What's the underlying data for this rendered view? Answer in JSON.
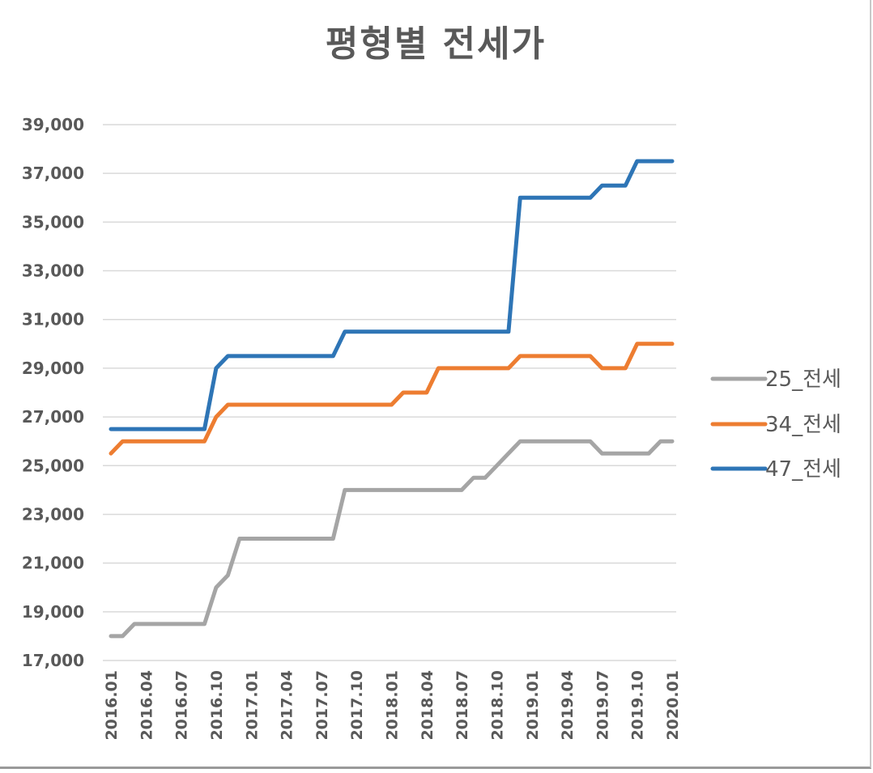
{
  "chart_data": {
    "type": "line",
    "title": "평형별 전세가",
    "xlabel": "",
    "ylabel": "",
    "ylim": [
      17000,
      39000
    ],
    "yticks": [
      17000,
      19000,
      21000,
      23000,
      25000,
      27000,
      29000,
      31000,
      33000,
      35000,
      37000,
      39000
    ],
    "ytick_labels": [
      "17,000",
      "19,000",
      "21,000",
      "23,000",
      "25,000",
      "27,000",
      "29,000",
      "31,000",
      "33,000",
      "35,000",
      "37,000",
      "39,000"
    ],
    "grid": true,
    "legend_position": "right",
    "xtick_labels": [
      "2016.01",
      "2016.04",
      "2016.07",
      "2016.10",
      "2017.01",
      "2017.04",
      "2017.07",
      "2017.10",
      "2018.01",
      "2018.04",
      "2018.07",
      "2018.10",
      "2019.01",
      "2019.04",
      "2019.07",
      "2019.10",
      "2020.01"
    ],
    "categories": [
      "2016.01",
      "2016.02",
      "2016.03",
      "2016.04",
      "2016.05",
      "2016.06",
      "2016.07",
      "2016.08",
      "2016.09",
      "2016.10",
      "2016.11",
      "2016.12",
      "2017.01",
      "2017.02",
      "2017.03",
      "2017.04",
      "2017.05",
      "2017.06",
      "2017.07",
      "2017.08",
      "2017.09",
      "2017.10",
      "2017.11",
      "2017.12",
      "2018.01",
      "2018.02",
      "2018.03",
      "2018.04",
      "2018.05",
      "2018.06",
      "2018.07",
      "2018.08",
      "2018.09",
      "2018.10",
      "2018.11",
      "2018.12",
      "2019.01",
      "2019.02",
      "2019.03",
      "2019.04",
      "2019.05",
      "2019.06",
      "2019.07",
      "2019.08",
      "2019.09",
      "2019.10",
      "2019.11",
      "2019.12",
      "2020.01"
    ],
    "series": [
      {
        "name": "25_전세",
        "color": "#a5a5a5",
        "values": [
          18000,
          18000,
          18500,
          18500,
          18500,
          18500,
          18500,
          18500,
          18500,
          20000,
          20500,
          22000,
          22000,
          22000,
          22000,
          22000,
          22000,
          22000,
          22000,
          22000,
          24000,
          24000,
          24000,
          24000,
          24000,
          24000,
          24000,
          24000,
          24000,
          24000,
          24000,
          24500,
          24500,
          25000,
          25500,
          26000,
          26000,
          26000,
          26000,
          26000,
          26000,
          26000,
          25500,
          25500,
          25500,
          25500,
          25500,
          26000,
          26000
        ]
      },
      {
        "name": "34_전세",
        "color": "#ed7d31",
        "values": [
          25500,
          26000,
          26000,
          26000,
          26000,
          26000,
          26000,
          26000,
          26000,
          27000,
          27500,
          27500,
          27500,
          27500,
          27500,
          27500,
          27500,
          27500,
          27500,
          27500,
          27500,
          27500,
          27500,
          27500,
          27500,
          28000,
          28000,
          28000,
          29000,
          29000,
          29000,
          29000,
          29000,
          29000,
          29000,
          29500,
          29500,
          29500,
          29500,
          29500,
          29500,
          29500,
          29000,
          29000,
          29000,
          30000,
          30000,
          30000,
          30000
        ]
      },
      {
        "name": "47_전세",
        "color": "#2e75b6",
        "values": [
          26500,
          26500,
          26500,
          26500,
          26500,
          26500,
          26500,
          26500,
          26500,
          29000,
          29500,
          29500,
          29500,
          29500,
          29500,
          29500,
          29500,
          29500,
          29500,
          29500,
          30500,
          30500,
          30500,
          30500,
          30500,
          30500,
          30500,
          30500,
          30500,
          30500,
          30500,
          30500,
          30500,
          30500,
          30500,
          36000,
          36000,
          36000,
          36000,
          36000,
          36000,
          36000,
          36500,
          36500,
          36500,
          37500,
          37500,
          37500,
          37500
        ]
      }
    ]
  }
}
